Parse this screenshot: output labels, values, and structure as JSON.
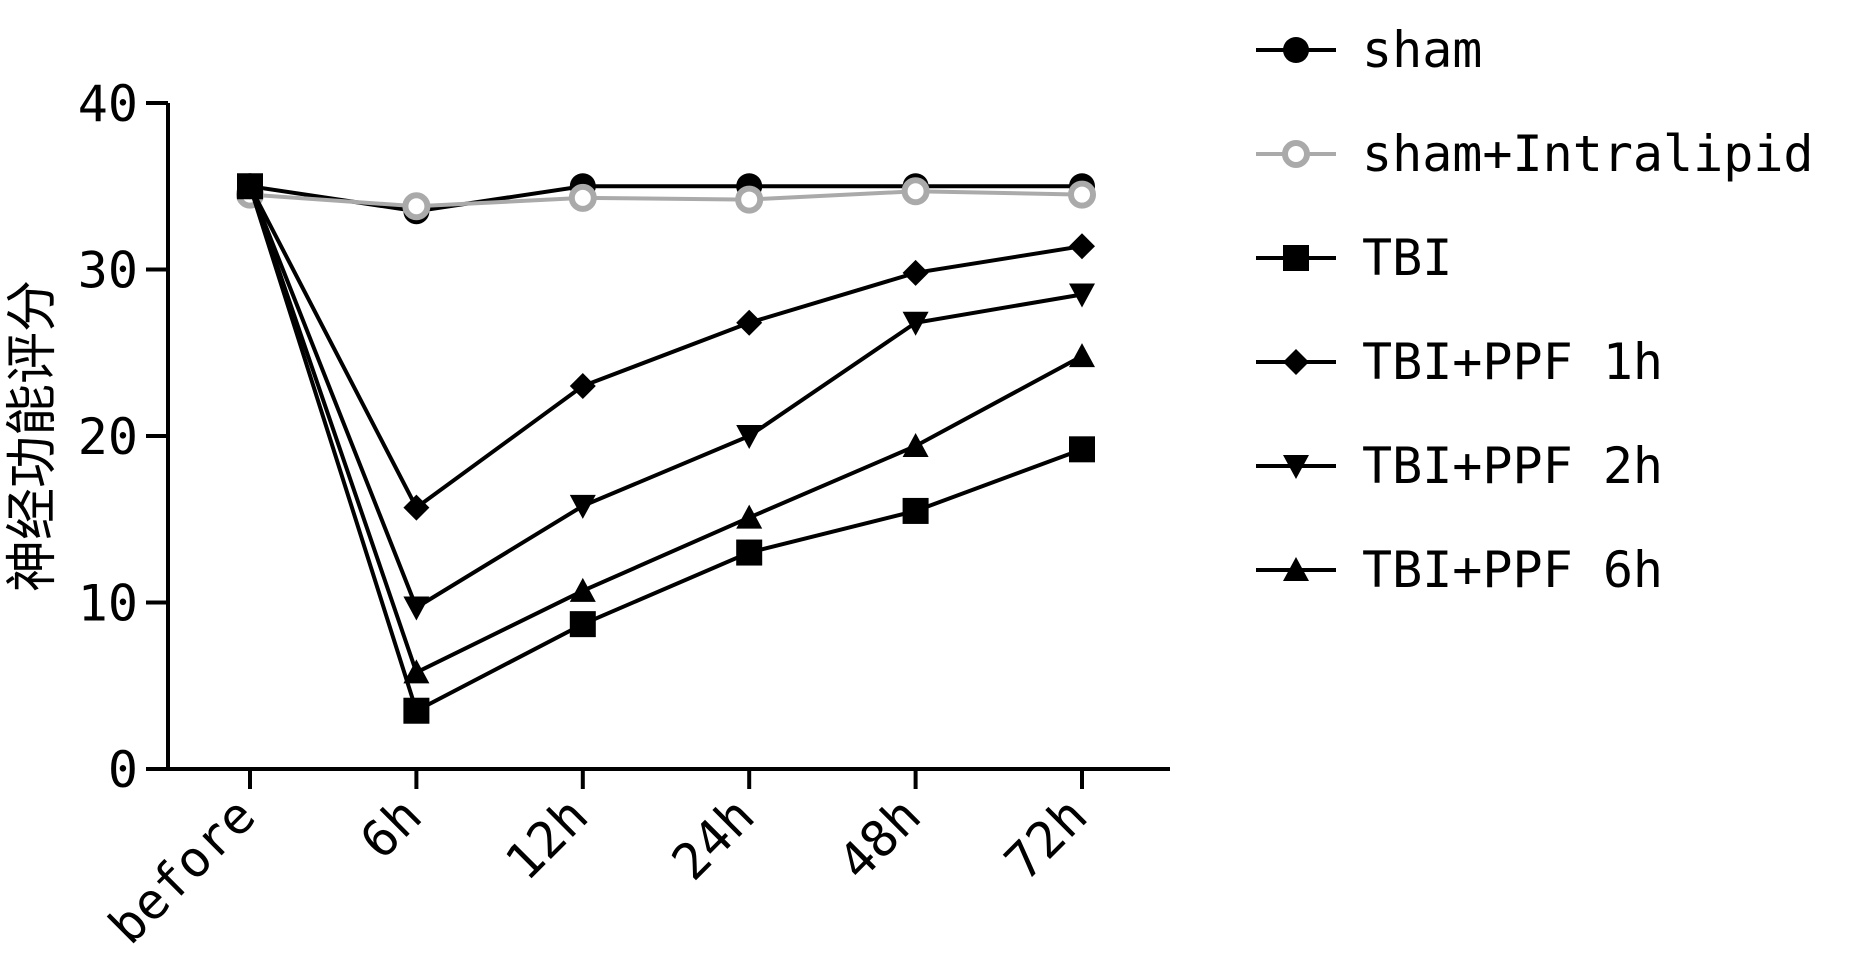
{
  "chart_data": {
    "type": "line",
    "title": "",
    "xlabel": "",
    "ylabel": "神经功能评分",
    "ylim": [
      0,
      40
    ],
    "yticks": [
      0,
      10,
      20,
      30,
      40
    ],
    "categories": [
      "before",
      "6h",
      "12h",
      "24h",
      "48h",
      "72h"
    ],
    "legend_position": "right",
    "series": [
      {
        "name": "sham",
        "marker": "circle",
        "color": "#000000",
        "values": [
          35,
          33.5,
          35,
          35,
          35,
          35
        ]
      },
      {
        "name": "sham+Intralipid",
        "marker": "circle-open",
        "color": "#aaaaaa",
        "values": [
          34.5,
          33.8,
          34.3,
          34.2,
          34.7,
          34.5
        ]
      },
      {
        "name": "TBI",
        "marker": "square",
        "color": "#000000",
        "values": [
          35,
          3.5,
          8.7,
          13,
          15.5,
          19.2
        ]
      },
      {
        "name": "TBI+PPF 1h",
        "marker": "diamond",
        "color": "#000000",
        "values": [
          35,
          15.7,
          23,
          26.8,
          29.8,
          31.4
        ]
      },
      {
        "name": "TBI+PPF 2h",
        "marker": "triangle-down",
        "color": "#000000",
        "values": [
          35,
          9.7,
          15.8,
          20,
          26.8,
          28.5
        ]
      },
      {
        "name": "TBI+PPF 6h",
        "marker": "triangle-up",
        "color": "#000000",
        "values": [
          35,
          5.8,
          10.7,
          15.1,
          19.4,
          24.8
        ]
      }
    ]
  }
}
